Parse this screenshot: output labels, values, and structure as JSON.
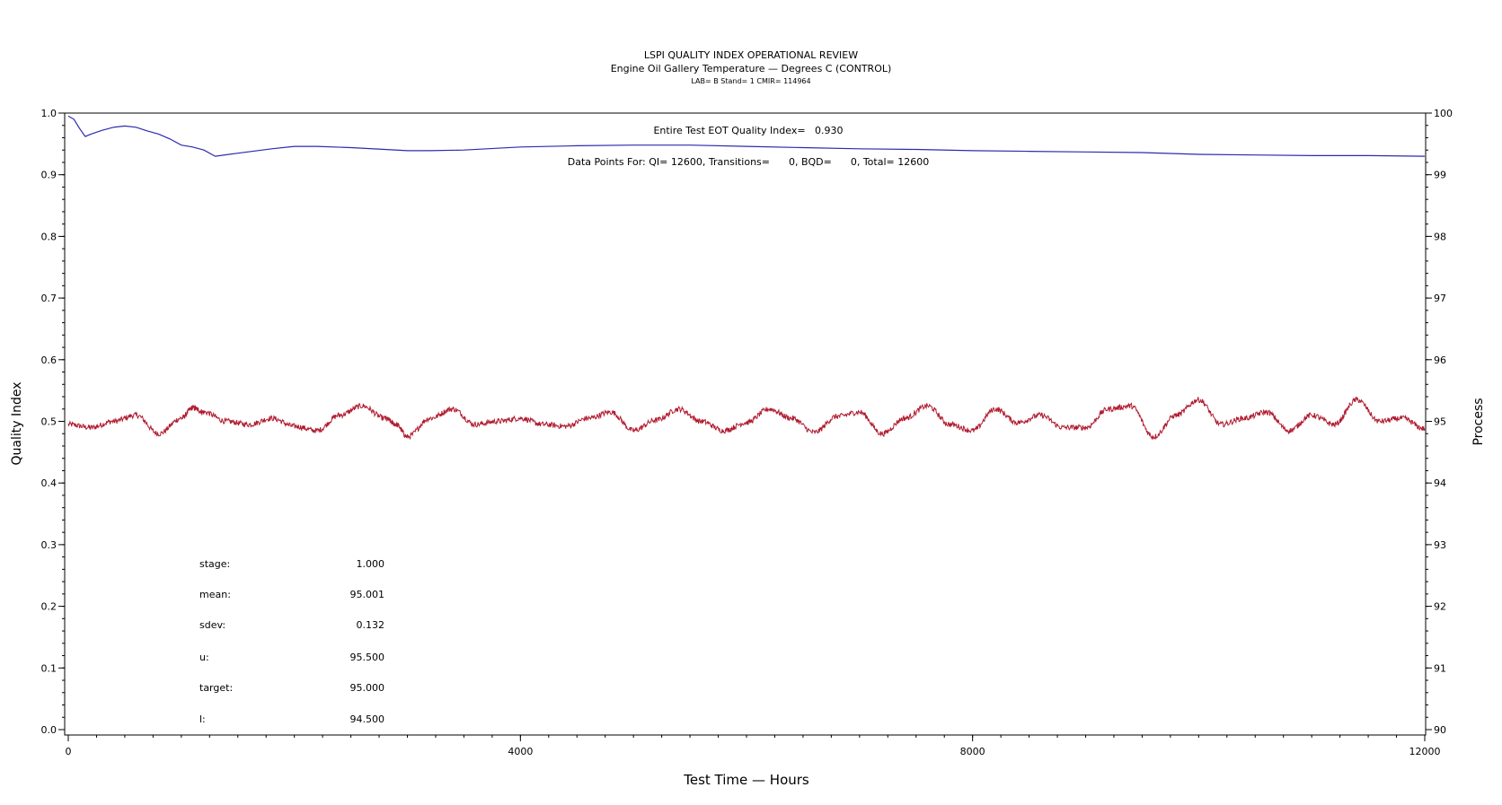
{
  "chart_data": {
    "type": "line",
    "title": "LSPI QUALITY INDEX OPERATIONAL REVIEW",
    "subtitle": "Engine Oil Gallery Temperature — Degrees C (CONTROL)",
    "subtitle2": "LAB= B Stand= 1 CMIR= 114964",
    "xlabel": "Test Time — Hours",
    "ylabel_left": "Quality Index",
    "ylabel_right": "Process",
    "xlim": [
      0,
      12000
    ],
    "ylim_left": [
      0.0,
      1.0
    ],
    "ylim_right": [
      90,
      100
    ],
    "x_ticks": [
      "0",
      "4000",
      "8000",
      "12000"
    ],
    "y_left_ticks": [
      "0.0",
      "0.1",
      "0.2",
      "0.3",
      "0.4",
      "0.5",
      "0.6",
      "0.7",
      "0.8",
      "0.9",
      "1.0"
    ],
    "y_right_ticks": [
      "90",
      "91",
      "92",
      "93",
      "94",
      "95",
      "96",
      "97",
      "98",
      "99",
      "100"
    ],
    "grid": false,
    "annotations": {
      "quality_index": "Entire Test EOT Quality Index=   0.930",
      "data_points": "Data Points For: QI= 12600, Transitions=      0, BQD=      0, Total= 12600"
    },
    "stats": [
      {
        "label": "stage:",
        "value": "1.000"
      },
      {
        "label": "mean:",
        "value": "95.001"
      },
      {
        "label": "sdev:",
        "value": "0.132"
      },
      {
        "label": "u:",
        "value": "95.500"
      },
      {
        "label": "target:",
        "value": "95.000"
      },
      {
        "label": "l:",
        "value": "94.500"
      }
    ],
    "series": [
      {
        "axis": "left",
        "color": "#2b2bb0",
        "x": [
          0,
          50,
          100,
          150,
          200,
          300,
          400,
          500,
          600,
          700,
          800,
          900,
          1000,
          1100,
          1200,
          1300,
          1500,
          1800,
          2000,
          2200,
          2500,
          2800,
          3000,
          3200,
          3500,
          4000,
          4500,
          5000,
          5500,
          6000,
          6500,
          7000,
          7500,
          8000,
          8500,
          9000,
          9500,
          10000,
          10500,
          11000,
          11500,
          12000
        ],
        "values": [
          0.995,
          0.99,
          0.975,
          0.962,
          0.966,
          0.972,
          0.977,
          0.979,
          0.977,
          0.971,
          0.966,
          0.958,
          0.948,
          0.945,
          0.94,
          0.93,
          0.935,
          0.942,
          0.946,
          0.946,
          0.944,
          0.941,
          0.939,
          0.939,
          0.94,
          0.945,
          0.947,
          0.948,
          0.948,
          0.946,
          0.944,
          0.942,
          0.941,
          0.939,
          0.938,
          0.937,
          0.936,
          0.933,
          0.932,
          0.931,
          0.931,
          0.93
        ]
      },
      {
        "axis": "right",
        "color": "#b01a2e",
        "x": [
          0,
          200,
          400,
          600,
          800,
          1000,
          1100,
          1200,
          1400,
          1600,
          1800,
          2000,
          2200,
          2400,
          2600,
          2800,
          2900,
          3000,
          3200,
          3400,
          3600,
          3800,
          4000,
          4200,
          4400,
          4600,
          4800,
          5000,
          5200,
          5400,
          5600,
          5800,
          6000,
          6200,
          6400,
          6600,
          6800,
          7000,
          7200,
          7400,
          7600,
          7800,
          8000,
          8200,
          8400,
          8600,
          8800,
          9000,
          9200,
          9400,
          9600,
          9800,
          10000,
          10200,
          10400,
          10600,
          10800,
          11000,
          11200,
          11400,
          11600,
          11800,
          12000
        ],
        "values": [
          94.95,
          94.9,
          95.0,
          95.1,
          94.8,
          95.05,
          95.22,
          95.15,
          95.0,
          94.95,
          95.05,
          94.92,
          94.85,
          95.1,
          95.25,
          95.05,
          94.95,
          94.75,
          95.05,
          95.2,
          94.95,
          95.0,
          95.05,
          94.95,
          94.92,
          95.05,
          95.15,
          94.85,
          95.02,
          95.2,
          95.0,
          94.85,
          94.98,
          95.2,
          95.05,
          94.82,
          95.08,
          95.15,
          94.8,
          95.05,
          95.25,
          94.95,
          94.85,
          95.2,
          94.98,
          95.1,
          94.9,
          94.9,
          95.2,
          95.25,
          94.75,
          95.1,
          95.35,
          94.95,
          95.05,
          95.15,
          94.85,
          95.1,
          94.95,
          95.35,
          95.0,
          95.05,
          94.88
        ]
      }
    ]
  }
}
